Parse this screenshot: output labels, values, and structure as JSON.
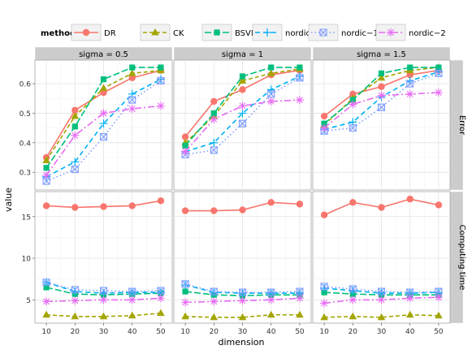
{
  "chart_data": {
    "type": "line",
    "xlabel": "dimension",
    "ylabel": "value",
    "legend": {
      "title": "method",
      "placement": "top"
    },
    "x": [
      10,
      20,
      30,
      40,
      50
    ],
    "x_ticks": [
      "10",
      "20",
      "30",
      "40",
      "50"
    ],
    "columns": [
      "sigma = 0.5",
      "sigma = 1",
      "sigma = 1.5"
    ],
    "rows": [
      {
        "strip": "Error",
        "ylim": [
          0.24,
          0.68
        ],
        "y_ticks": [
          0.3,
          0.4,
          0.5,
          0.6
        ],
        "y_tick_labels": [
          "0.3",
          "0.4",
          "0.5",
          "0.6"
        ]
      },
      {
        "strip": "Computing time",
        "ylim": [
          2.2,
          18.0
        ],
        "y_ticks": [
          5,
          10,
          15
        ],
        "y_tick_labels": [
          "5",
          "10",
          "15"
        ]
      }
    ],
    "series": [
      {
        "name": "DR",
        "color": "#f8766d",
        "marker": "circle",
        "dash": "solid",
        "values": [
          [
            [
              0.35,
              0.51,
              0.57,
              0.62,
              0.645
            ],
            [
              0.42,
              0.54,
              0.58,
              0.63,
              0.645
            ],
            [
              0.49,
              0.565,
              0.59,
              0.63,
              0.645
            ]
          ],
          [
            [
              16.3,
              16.1,
              16.2,
              16.3,
              16.9
            ],
            [
              15.7,
              15.7,
              15.8,
              16.7,
              16.5
            ],
            [
              15.2,
              16.7,
              16.1,
              17.1,
              16.4
            ]
          ]
        ]
      },
      {
        "name": "CK",
        "color": "#a3a500",
        "marker": "triangle",
        "dash": "5,3",
        "values": [
          [
            [
              0.34,
              0.49,
              0.585,
              0.635,
              0.645
            ],
            [
              0.4,
              0.49,
              0.61,
              0.635,
              0.65
            ],
            [
              0.46,
              0.55,
              0.62,
              0.645,
              0.655
            ]
          ],
          [
            [
              3.2,
              3.0,
              3.0,
              3.1,
              3.4
            ],
            [
              3.0,
              2.9,
              2.9,
              3.2,
              3.2
            ],
            [
              2.9,
              3.0,
              2.9,
              3.2,
              3.1
            ]
          ]
        ]
      },
      {
        "name": "BSVM",
        "color": "#00bf7d",
        "marker": "square",
        "dash": "8,3",
        "values": [
          [
            [
              0.315,
              0.455,
              0.615,
              0.655,
              0.655
            ],
            [
              0.39,
              0.5,
              0.625,
              0.655,
              0.655
            ],
            [
              0.465,
              0.545,
              0.635,
              0.655,
              0.655
            ]
          ],
          [
            [
              6.5,
              5.7,
              5.6,
              5.7,
              5.8
            ],
            [
              6.0,
              5.6,
              5.5,
              5.6,
              5.6
            ],
            [
              5.9,
              5.7,
              5.6,
              5.6,
              5.6
            ]
          ]
        ]
      },
      {
        "name": "nordic−0",
        "color": "#00b0f6",
        "marker": "plus",
        "dash": "6,4",
        "values": [
          [
            [
              0.285,
              0.335,
              0.465,
              0.565,
              0.615
            ],
            [
              0.37,
              0.4,
              0.5,
              0.58,
              0.625
            ],
            [
              0.445,
              0.47,
              0.555,
              0.61,
              0.64
            ]
          ],
          [
            [
              7.1,
              6.0,
              5.8,
              5.9,
              5.9
            ],
            [
              6.8,
              5.9,
              5.8,
              5.8,
              5.8
            ],
            [
              6.4,
              6.1,
              5.8,
              5.8,
              5.9
            ]
          ]
        ]
      },
      {
        "name": "nordic−1",
        "color": "#7f9dff",
        "marker": "boxx",
        "dash": "1.5,3",
        "values": [
          [
            [
              0.27,
              0.31,
              0.42,
              0.545,
              0.61
            ],
            [
              0.36,
              0.375,
              0.465,
              0.565,
              0.62
            ],
            [
              0.44,
              0.45,
              0.52,
              0.6,
              0.635
            ]
          ],
          [
            [
              7.1,
              6.2,
              6.1,
              6.0,
              6.1
            ],
            [
              6.9,
              6.0,
              5.9,
              5.9,
              6.0
            ],
            [
              6.6,
              6.3,
              6.0,
              5.9,
              6.0
            ]
          ]
        ]
      },
      {
        "name": "nordic−2",
        "color": "#e76bf3",
        "marker": "asterisk",
        "dash": "8,3,2,3",
        "values": [
          [
            [
              0.29,
              0.425,
              0.5,
              0.515,
              0.525
            ],
            [
              0.37,
              0.48,
              0.525,
              0.54,
              0.545
            ],
            [
              0.45,
              0.53,
              0.56,
              0.565,
              0.57
            ]
          ],
          [
            [
              4.8,
              4.9,
              5.0,
              5.0,
              5.2
            ],
            [
              4.7,
              4.8,
              4.9,
              5.0,
              5.2
            ],
            [
              4.6,
              5.0,
              5.0,
              5.2,
              5.3
            ]
          ]
        ]
      }
    ]
  }
}
